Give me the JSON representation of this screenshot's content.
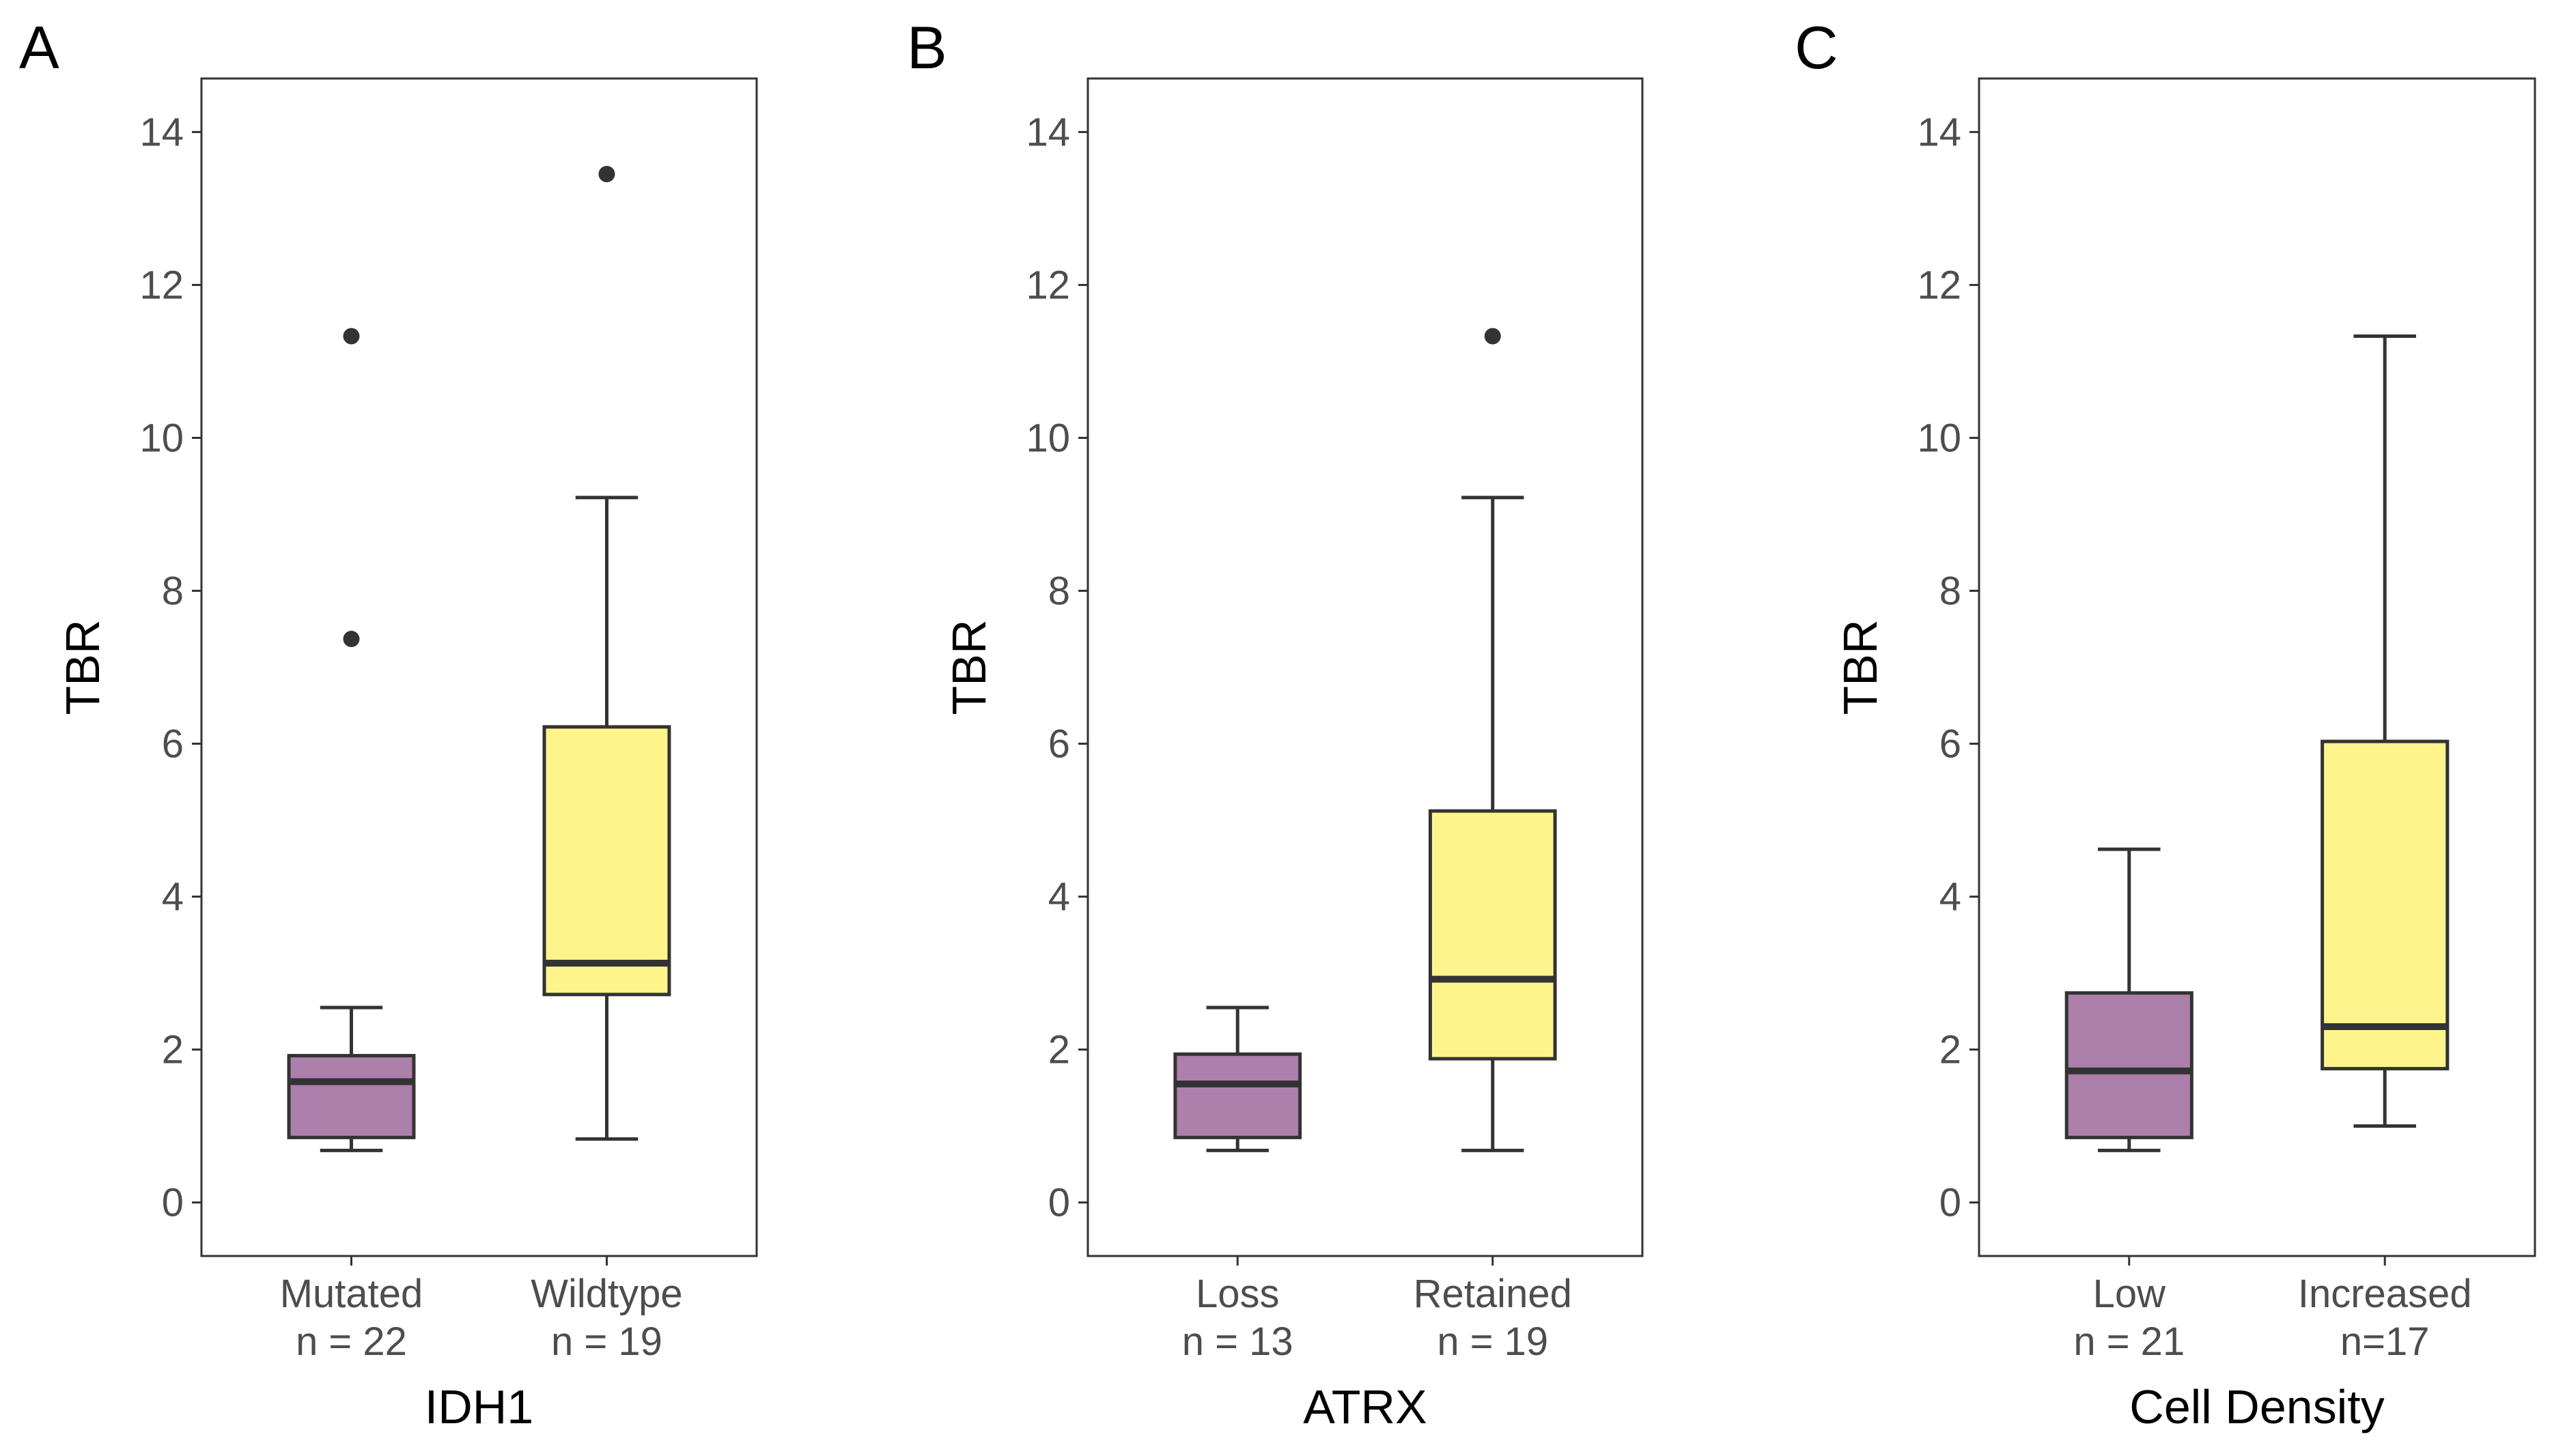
{
  "colors": {
    "purple": "#ad7fab",
    "yellow": "#fff48c",
    "stroke": "#333333",
    "frame": "#333333"
  },
  "chart_data": [
    {
      "type": "box",
      "panel": "A",
      "xlabel": "IDH1",
      "ylabel": "TBR",
      "ylim": [
        -0.7,
        14.7
      ],
      "yticks": [
        "0",
        "2",
        "4",
        "6",
        "8",
        "10",
        "12",
        "14"
      ],
      "groups": [
        {
          "name": "Mutated",
          "n_label": "n = 22",
          "color": "#ad7fab",
          "whisker_low": 0.68,
          "q1": 0.85,
          "median": 1.58,
          "q3": 1.92,
          "whisker_high": 2.55,
          "outliers": [
            7.37,
            11.33
          ]
        },
        {
          "name": "Wildtype",
          "n_label": "n = 19",
          "color": "#fff48c",
          "whisker_low": 0.83,
          "q1": 2.72,
          "median": 3.13,
          "q3": 6.22,
          "whisker_high": 9.22,
          "outliers": [
            13.45
          ]
        }
      ]
    },
    {
      "type": "box",
      "panel": "B",
      "xlabel": "ATRX",
      "ylabel": "TBR",
      "ylim": [
        -0.7,
        14.7
      ],
      "yticks": [
        "0",
        "2",
        "4",
        "6",
        "8",
        "10",
        "12",
        "14"
      ],
      "groups": [
        {
          "name": "Loss",
          "n_label": "n = 13",
          "color": "#ad7fab",
          "whisker_low": 0.68,
          "q1": 0.85,
          "median": 1.55,
          "q3": 1.94,
          "whisker_high": 2.55,
          "outliers": []
        },
        {
          "name": "Retained",
          "n_label": "n = 19",
          "color": "#fff48c",
          "whisker_low": 0.68,
          "q1": 1.88,
          "median": 2.92,
          "q3": 5.12,
          "whisker_high": 9.22,
          "outliers": [
            11.33
          ]
        }
      ]
    },
    {
      "type": "box",
      "panel": "C",
      "xlabel": "Cell Density",
      "ylabel": "TBR",
      "ylim": [
        -0.7,
        14.7
      ],
      "yticks": [
        "0",
        "2",
        "4",
        "6",
        "8",
        "10",
        "12",
        "14"
      ],
      "groups": [
        {
          "name": "Low",
          "n_label": "n = 21",
          "color": "#ad7fab",
          "whisker_low": 0.68,
          "q1": 0.85,
          "median": 1.72,
          "q3": 2.74,
          "whisker_high": 4.62,
          "outliers": []
        },
        {
          "name": "Increased",
          "n_label": "n=17",
          "color": "#fff48c",
          "whisker_low": 1.0,
          "q1": 1.75,
          "median": 2.3,
          "q3": 6.03,
          "whisker_high": 11.33,
          "outliers": []
        }
      ]
    }
  ]
}
